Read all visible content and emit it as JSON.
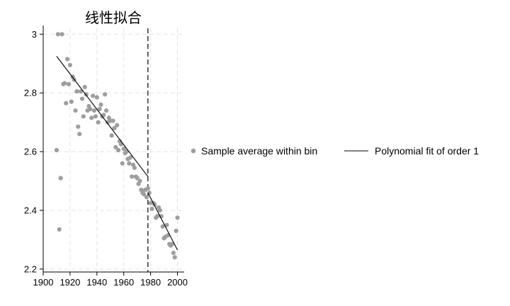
{
  "chart_data": {
    "type": "scatter",
    "title": "线性拟合",
    "xlabel": "",
    "ylabel": "",
    "xlim": [
      1900,
      2005
    ],
    "ylim": [
      2.19,
      3.02
    ],
    "x_ticks": [
      1900,
      1920,
      1940,
      1960,
      1980,
      2000
    ],
    "y_ticks": [
      2.2,
      2.4,
      2.6,
      2.8,
      3.0
    ],
    "x_tick_labels": [
      "1900",
      "1920",
      "1940",
      "1960",
      "1980",
      "2000"
    ],
    "y_tick_labels": [
      "2.2",
      "2.4",
      "2.6",
      "2.8",
      "3"
    ],
    "grid": true,
    "legend_position": "right",
    "cutoff_line_x": 1978,
    "colors": {
      "points": "#9e9e9e",
      "fit": "#000000",
      "cutoff": "#000000",
      "grid": "#e4e4e4"
    },
    "series": [
      {
        "name": "Sample average within bin",
        "kind": "scatter",
        "x": [
          1910,
          1911,
          1912,
          1913,
          1914,
          1915,
          1916,
          1917,
          1918,
          1919,
          1920,
          1921,
          1922,
          1923,
          1924,
          1925,
          1926,
          1927,
          1928,
          1929,
          1930,
          1931,
          1932,
          1933,
          1934,
          1935,
          1936,
          1937,
          1938,
          1939,
          1940,
          1941,
          1942,
          1943,
          1944,
          1945,
          1946,
          1947,
          1948,
          1949,
          1950,
          1951,
          1952,
          1953,
          1954,
          1955,
          1956,
          1957,
          1958,
          1959,
          1960,
          1961,
          1962,
          1963,
          1964,
          1965,
          1966,
          1967,
          1968,
          1969,
          1970,
          1971,
          1972,
          1973,
          1974,
          1975,
          1976,
          1977,
          1978,
          1979,
          1980,
          1981,
          1982,
          1983,
          1984,
          1985,
          1986,
          1987,
          1988,
          1989,
          1990,
          1991,
          1992,
          1993,
          1994,
          1995,
          1996,
          1997,
          1998,
          1999,
          2000
        ],
        "y": [
          2.605,
          3.0,
          2.335,
          2.51,
          3.0,
          2.83,
          2.833,
          2.765,
          2.915,
          2.83,
          2.895,
          2.77,
          2.855,
          2.845,
          2.74,
          2.805,
          2.685,
          2.66,
          2.805,
          2.78,
          2.72,
          2.82,
          2.795,
          2.74,
          2.755,
          2.745,
          2.715,
          2.79,
          2.74,
          2.72,
          2.785,
          2.7,
          2.745,
          2.76,
          2.72,
          2.725,
          2.795,
          2.74,
          2.7,
          2.715,
          2.705,
          2.655,
          2.705,
          2.68,
          2.615,
          2.69,
          2.605,
          2.635,
          2.625,
          2.56,
          2.61,
          2.595,
          2.6,
          2.575,
          2.56,
          2.58,
          2.515,
          2.555,
          2.545,
          2.515,
          2.51,
          2.49,
          2.5,
          2.47,
          2.46,
          2.455,
          2.47,
          2.445,
          2.475,
          2.46,
          2.425,
          2.405,
          2.425,
          2.42,
          2.375,
          2.38,
          2.41,
          2.4,
          2.38,
          2.345,
          2.305,
          2.31,
          2.35,
          2.315,
          2.285,
          2.28,
          2.285,
          2.255,
          2.24,
          2.33,
          2.375
        ]
      },
      {
        "name": "Polynomial fit of order 1",
        "kind": "line",
        "segments": [
          {
            "x": [
              1910,
              1978
            ],
            "y": [
              2.925,
              2.515
            ]
          },
          {
            "x": [
              1978,
              2000
            ],
            "y": [
              2.46,
              2.265
            ]
          }
        ]
      }
    ]
  }
}
